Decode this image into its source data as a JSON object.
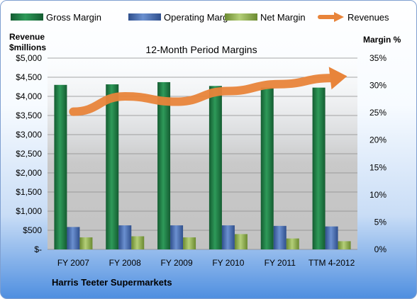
{
  "chart_data": {
    "type": "bar",
    "title": "12-Month Period Margins",
    "categories": [
      "FY 2007",
      "FY 2008",
      "FY 2009",
      "FY 2010",
      "FY 2011",
      "TTM 4-2012"
    ],
    "series": [
      {
        "name": "Gross Margin",
        "axis": "right",
        "values": [
          30.1,
          30.2,
          30.6,
          29.9,
          29.6,
          29.6
        ]
      },
      {
        "name": "Operating Margin",
        "axis": "right",
        "values": [
          4.1,
          4.4,
          4.4,
          4.4,
          4.3,
          4.2
        ]
      },
      {
        "name": "Net Margin",
        "axis": "right",
        "values": [
          2.2,
          2.4,
          2.2,
          2.8,
          2.0,
          1.5
        ]
      },
      {
        "name": "Revenues",
        "axis": "left",
        "type": "line",
        "values": [
          3600,
          4000,
          3860,
          4140,
          4320,
          4480
        ]
      }
    ],
    "left_axis": {
      "label_line1": "Revenue",
      "label_line2": "$millions",
      "ylim": [
        0,
        5000
      ],
      "ticks": [
        0,
        500,
        1000,
        1500,
        2000,
        2500,
        3000,
        3500,
        4000,
        4500,
        5000
      ],
      "tick_labels": [
        "$-",
        "$500",
        "$1,000",
        "$1,500",
        "$2,000",
        "$2,500",
        "$3,000",
        "$3,500",
        "$4,000",
        "$4,500",
        "$5,000"
      ]
    },
    "right_axis": {
      "label": "Margin %",
      "ylim": [
        0,
        35
      ],
      "ticks": [
        0,
        5,
        10,
        15,
        20,
        25,
        30,
        35
      ],
      "tick_labels": [
        "0%",
        "5%",
        "10%",
        "15%",
        "20%",
        "25%",
        "30%",
        "35%"
      ]
    },
    "legend": {
      "position": "top",
      "items": [
        {
          "name": "Gross Margin",
          "kind": "bar"
        },
        {
          "name": "Operating Margin",
          "kind": "bar"
        },
        {
          "name": "Net Margin",
          "kind": "bar"
        },
        {
          "name": "Revenues",
          "kind": "arrow"
        }
      ]
    },
    "footer": "Harris Teeter Supermarkets",
    "grid": true,
    "colors": {
      "gross": "#1f7a45",
      "operating": "#4a72b8",
      "net": "#94b454",
      "revenues": "#e8843a",
      "plot_bg": "#c7c7c7"
    }
  }
}
